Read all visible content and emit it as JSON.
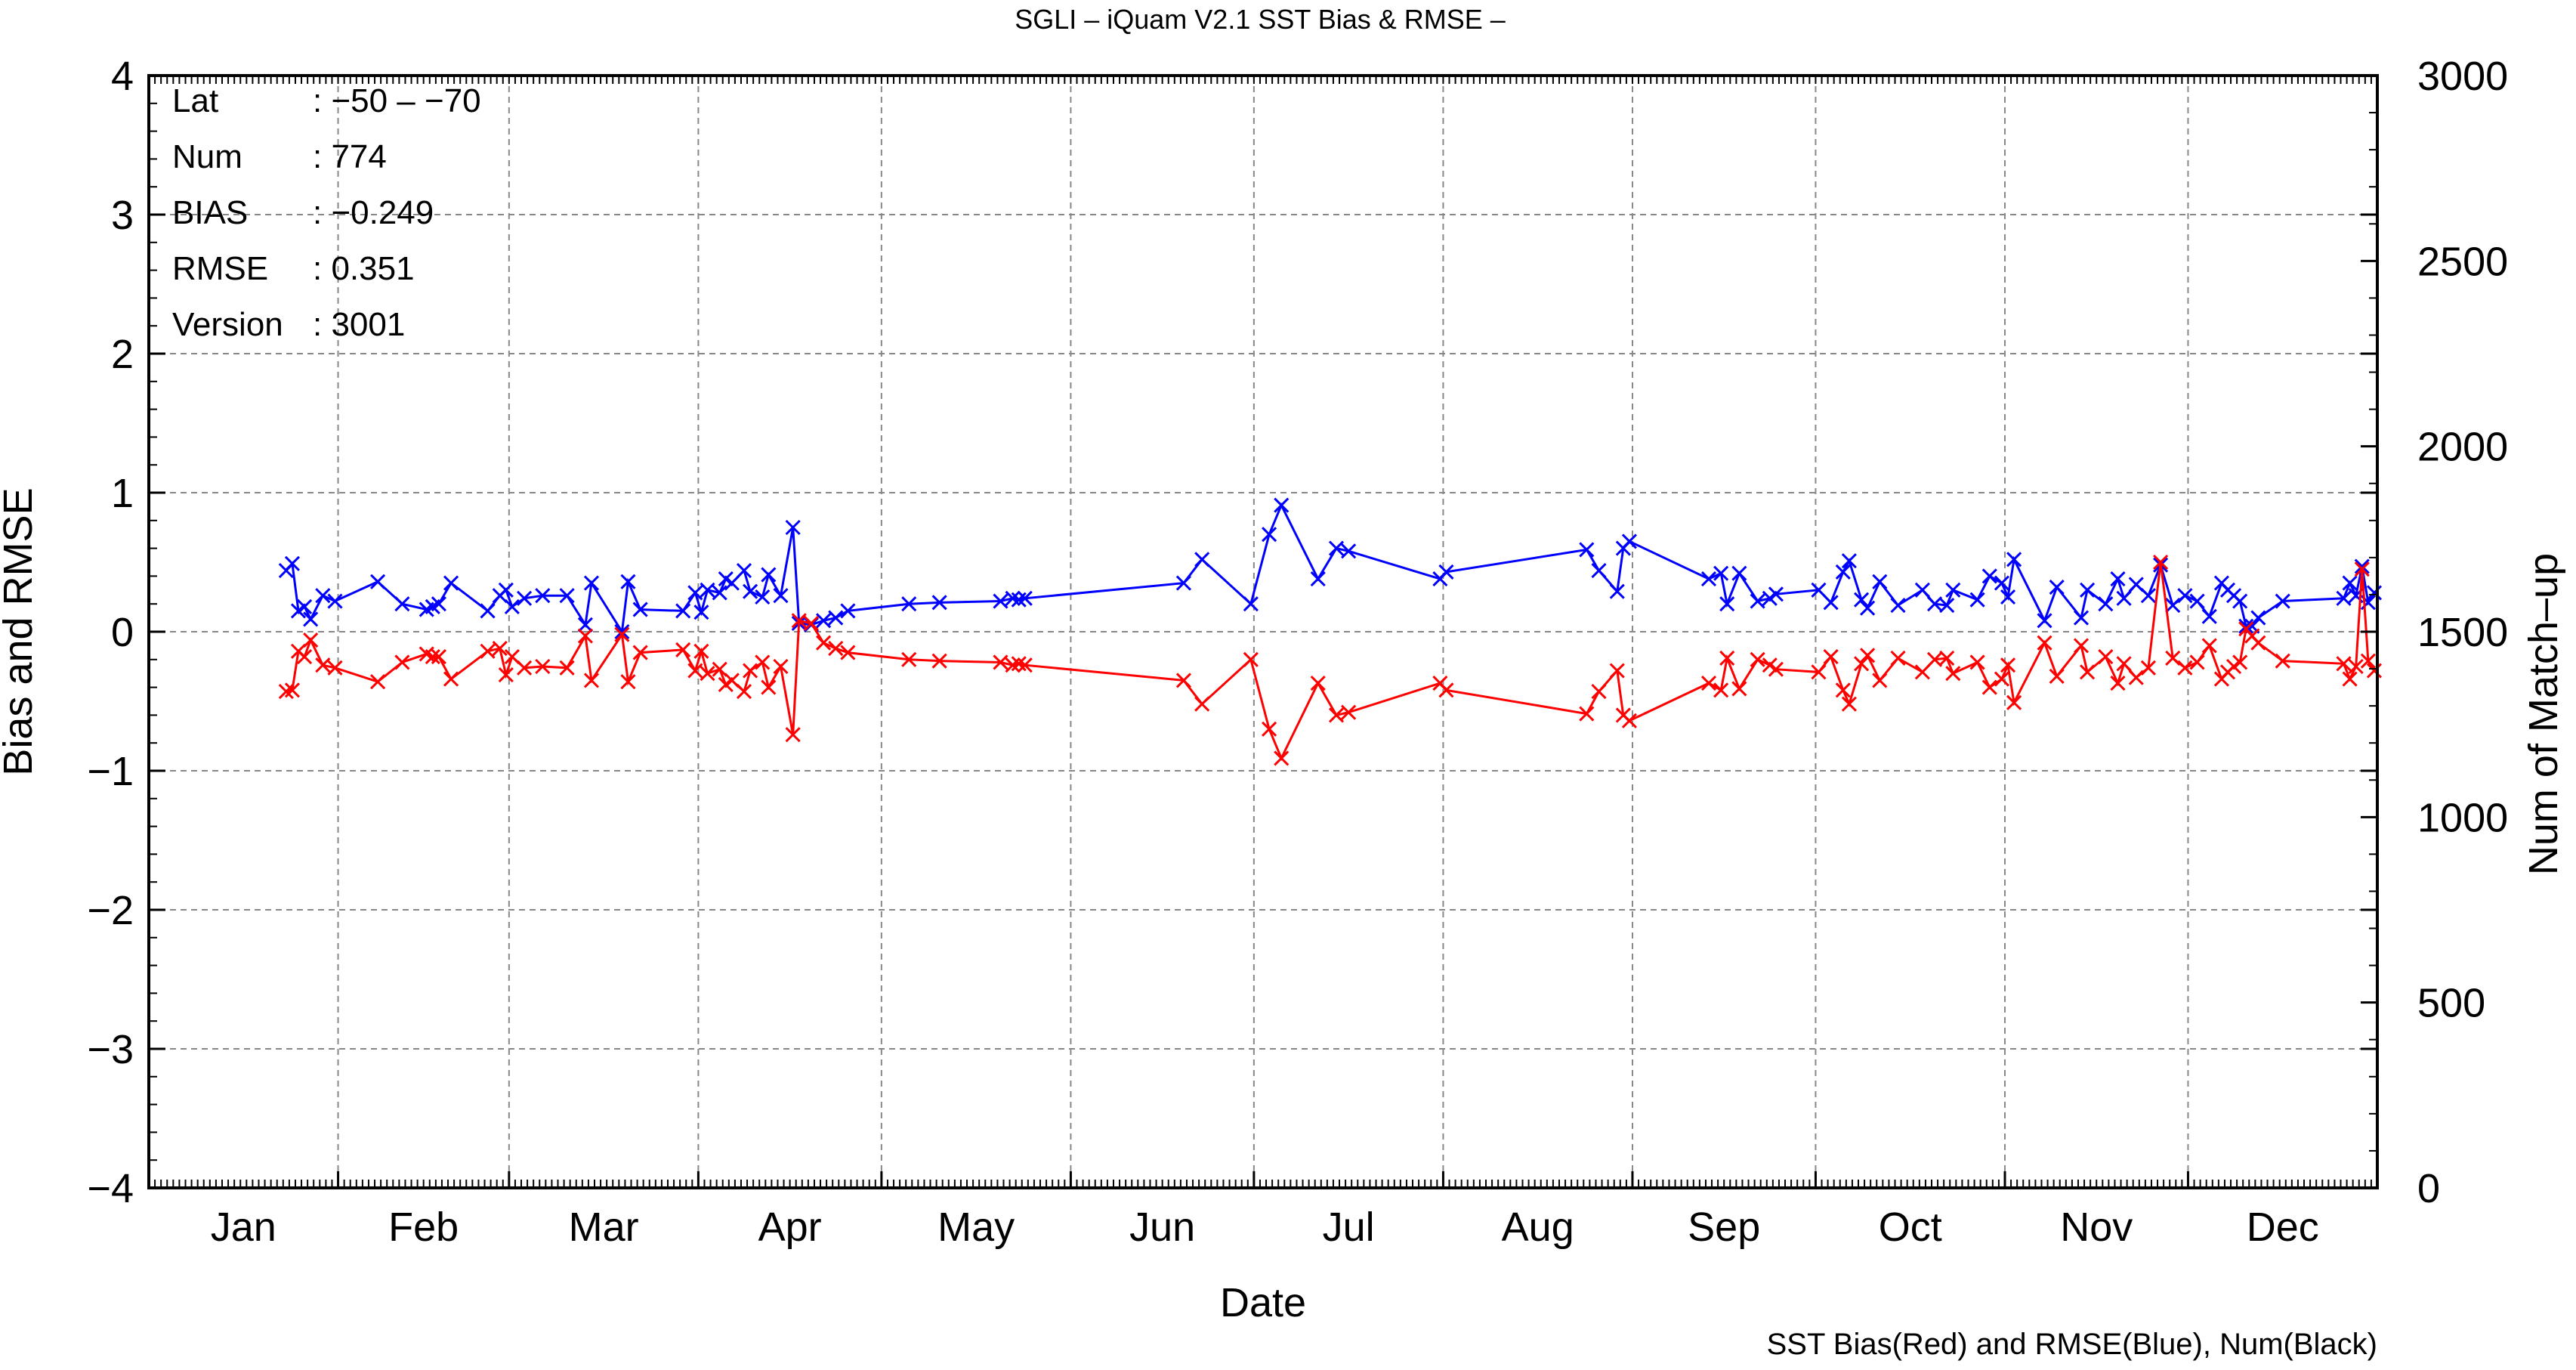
{
  "chart_data": {
    "type": "line",
    "title": "SGLI – iQuam V2.1 SST Bias & RMSE  –",
    "xlabel": "Date",
    "ylabel": "Bias and RMSE",
    "y2label": "Num of Match–up",
    "caption": "SST Bias(Red) and RMSE(Blue), Num(Black)",
    "ylim": [
      -4,
      4
    ],
    "y2lim": [
      0,
      3000
    ],
    "xlim": [
      "01-01",
      "12-31"
    ],
    "y_ticks": [
      "−4",
      "−3",
      "−2",
      "−1",
      "0",
      "1",
      "2",
      "3",
      "4"
    ],
    "y2_ticks": [
      "0",
      "500",
      "1000",
      "1500",
      "2000",
      "2500",
      "3000"
    ],
    "x_ticks": [
      "Jan",
      "Feb",
      "Mar",
      "Apr",
      "May",
      "Jun",
      "Jul",
      "Aug",
      "Sep",
      "Oct",
      "Nov",
      "Dec"
    ],
    "grid": true,
    "info": [
      {
        "label": "Lat",
        "value": ": −50 – −70"
      },
      {
        "label": "Num",
        "value": ": 774"
      },
      {
        "label": "BIAS",
        "value": ": −0.249"
      },
      {
        "label": "RMSE",
        "value": ": 0.351"
      },
      {
        "label": "Version",
        "value": ": 3001"
      }
    ],
    "series": [
      {
        "name": "RMSE",
        "color": "#0000ff",
        "x": [
          "01-23",
          "01-24",
          "01-25",
          "01-26",
          "01-27",
          "01-29",
          "01-31",
          "02-07",
          "02-11",
          "02-15",
          "02-16",
          "02-17",
          "02-19",
          "02-25",
          "02-27",
          "02-28",
          "03-01",
          "03-03",
          "03-06",
          "03-10",
          "03-13",
          "03-14",
          "03-19",
          "03-20",
          "03-22",
          "03-29",
          "03-31",
          "04-01",
          "04-02",
          "04-04",
          "04-05",
          "04-06",
          "04-08",
          "04-09",
          "04-11",
          "04-12",
          "04-14",
          "04-16",
          "04-17",
          "04-19",
          "04-21",
          "04-23",
          "04-25",
          "05-05",
          "05-10",
          "05-20",
          "05-22",
          "05-23",
          "05-24",
          "06-19",
          "06-22",
          "06-30",
          "07-03",
          "07-05",
          "07-11",
          "07-14",
          "07-16",
          "07-31",
          "08-01",
          "08-24",
          "08-26",
          "08-29",
          "08-30",
          "08-31",
          "09-13",
          "09-15",
          "09-16",
          "09-18",
          "09-21",
          "09-23",
          "09-24",
          "10-01",
          "10-03",
          "10-05",
          "10-06",
          "10-08",
          "10-09",
          "10-11",
          "10-14",
          "10-18",
          "10-20",
          "10-22",
          "10-23",
          "10-27",
          "10-29",
          "10-31",
          "11-01",
          "11-02",
          "11-07",
          "11-09",
          "11-13",
          "11-14",
          "11-17",
          "11-19",
          "11-20",
          "11-22",
          "11-24",
          "11-26",
          "11-28",
          "11-30",
          "12-02",
          "12-04",
          "12-06",
          "12-07",
          "12-08",
          "12-09",
          "12-10",
          "12-11",
          "12-12",
          "12-16",
          "12-26",
          "12-27",
          "12-28",
          "12-29",
          "12-30",
          "12-31"
        ],
        "y": [
          0.44,
          0.49,
          0.15,
          0.18,
          0.09,
          0.26,
          0.22,
          0.36,
          0.2,
          0.16,
          0.18,
          0.2,
          0.35,
          0.15,
          0.26,
          0.3,
          0.18,
          0.24,
          0.26,
          0.26,
          0.05,
          0.35,
          0.0,
          0.36,
          0.16,
          0.15,
          0.28,
          0.14,
          0.3,
          0.28,
          0.38,
          0.35,
          0.44,
          0.29,
          0.25,
          0.41,
          0.26,
          0.75,
          0.06,
          0.05,
          0.08,
          0.1,
          0.15,
          0.2,
          0.21,
          0.22,
          0.24,
          0.23,
          0.24,
          0.35,
          0.52,
          0.2,
          0.7,
          0.91,
          0.38,
          0.6,
          0.58,
          0.38,
          0.43,
          0.59,
          0.44,
          0.29,
          0.6,
          0.65,
          0.38,
          0.42,
          0.2,
          0.42,
          0.22,
          0.24,
          0.27,
          0.3,
          0.21,
          0.43,
          0.51,
          0.23,
          0.17,
          0.36,
          0.19,
          0.3,
          0.2,
          0.19,
          0.3,
          0.23,
          0.4,
          0.35,
          0.25,
          0.52,
          0.08,
          0.32,
          0.1,
          0.3,
          0.2,
          0.38,
          0.24,
          0.34,
          0.26,
          0.48,
          0.19,
          0.26,
          0.22,
          0.11,
          0.35,
          0.3,
          0.26,
          0.22,
          0.04,
          0.04,
          0.1,
          0.22,
          0.24,
          0.35,
          0.26,
          0.47,
          0.21,
          0.28
        ]
      },
      {
        "name": "Bias",
        "color": "#ff0000",
        "x": [
          "01-23",
          "01-24",
          "01-25",
          "01-26",
          "01-27",
          "01-29",
          "01-31",
          "02-07",
          "02-11",
          "02-15",
          "02-16",
          "02-17",
          "02-19",
          "02-25",
          "02-27",
          "02-28",
          "03-01",
          "03-03",
          "03-06",
          "03-10",
          "03-13",
          "03-14",
          "03-19",
          "03-20",
          "03-22",
          "03-29",
          "03-31",
          "04-01",
          "04-02",
          "04-04",
          "04-05",
          "04-06",
          "04-08",
          "04-09",
          "04-11",
          "04-12",
          "04-14",
          "04-16",
          "04-17",
          "04-19",
          "04-21",
          "04-23",
          "04-25",
          "05-05",
          "05-10",
          "05-20",
          "05-22",
          "05-23",
          "05-24",
          "06-19",
          "06-22",
          "06-30",
          "07-03",
          "07-05",
          "07-11",
          "07-14",
          "07-16",
          "07-31",
          "08-01",
          "08-24",
          "08-26",
          "08-29",
          "08-30",
          "08-31",
          "09-13",
          "09-15",
          "09-16",
          "09-18",
          "09-21",
          "09-23",
          "09-24",
          "10-01",
          "10-03",
          "10-05",
          "10-06",
          "10-08",
          "10-09",
          "10-11",
          "10-14",
          "10-18",
          "10-20",
          "10-22",
          "10-23",
          "10-27",
          "10-29",
          "10-31",
          "11-01",
          "11-02",
          "11-07",
          "11-09",
          "11-13",
          "11-14",
          "11-17",
          "11-19",
          "11-20",
          "11-22",
          "11-24",
          "11-26",
          "11-28",
          "11-30",
          "12-02",
          "12-04",
          "12-06",
          "12-07",
          "12-08",
          "12-09",
          "12-10",
          "12-11",
          "12-12",
          "12-16",
          "12-26",
          "12-27",
          "12-28",
          "12-29",
          "12-30",
          "12-31"
        ],
        "y": [
          -0.43,
          -0.42,
          -0.14,
          -0.18,
          -0.06,
          -0.24,
          -0.26,
          -0.36,
          -0.22,
          -0.16,
          -0.18,
          -0.18,
          -0.34,
          -0.14,
          -0.12,
          -0.31,
          -0.18,
          -0.26,
          -0.25,
          -0.26,
          -0.03,
          -0.35,
          -0.02,
          -0.36,
          -0.15,
          -0.13,
          -0.28,
          -0.14,
          -0.3,
          -0.27,
          -0.38,
          -0.35,
          -0.43,
          -0.28,
          -0.22,
          -0.4,
          -0.25,
          -0.74,
          0.08,
          0.06,
          -0.08,
          -0.12,
          -0.15,
          -0.2,
          -0.21,
          -0.22,
          -0.24,
          -0.23,
          -0.24,
          -0.35,
          -0.52,
          -0.2,
          -0.7,
          -0.91,
          -0.37,
          -0.6,
          -0.58,
          -0.37,
          -0.42,
          -0.59,
          -0.43,
          -0.28,
          -0.6,
          -0.64,
          -0.37,
          -0.42,
          -0.19,
          -0.41,
          -0.2,
          -0.24,
          -0.27,
          -0.29,
          -0.18,
          -0.42,
          -0.52,
          -0.23,
          -0.17,
          -0.35,
          -0.19,
          -0.29,
          -0.2,
          -0.19,
          -0.3,
          -0.22,
          -0.4,
          -0.34,
          -0.24,
          -0.51,
          -0.08,
          -0.32,
          -0.1,
          -0.29,
          -0.18,
          -0.37,
          -0.23,
          -0.33,
          -0.26,
          0.5,
          -0.19,
          -0.26,
          -0.22,
          -0.1,
          -0.34,
          -0.29,
          -0.25,
          -0.22,
          0.02,
          -0.03,
          -0.08,
          -0.21,
          -0.23,
          -0.34,
          -0.25,
          0.45,
          -0.21,
          -0.28
        ]
      }
    ]
  }
}
